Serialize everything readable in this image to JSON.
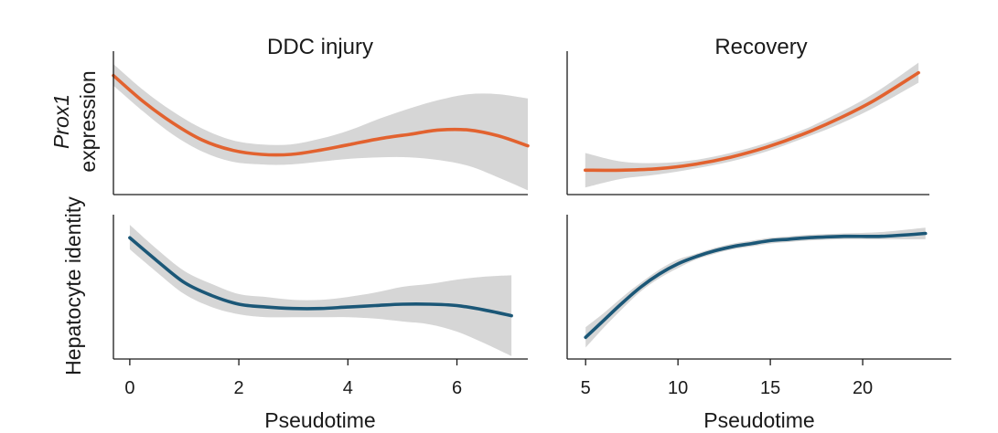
{
  "chart_data": [
    {
      "type": "line",
      "panel": "top-left",
      "title": "DDC injury",
      "ylabel_italic": "Prox1",
      "ylabel": "expression",
      "xlabel": "",
      "xlim": [
        0,
        7
      ],
      "ylim": [
        0,
        1
      ],
      "x": [
        0,
        0.5,
        1,
        1.5,
        2,
        2.5,
        3,
        3.5,
        4,
        4.5,
        5,
        5.5,
        6,
        6.5,
        7
      ],
      "series": [
        {
          "name": "Prox1 expression",
          "color": "#e2622f",
          "values": [
            0.83,
            0.65,
            0.5,
            0.38,
            0.31,
            0.28,
            0.28,
            0.31,
            0.35,
            0.39,
            0.42,
            0.45,
            0.45,
            0.41,
            0.34
          ],
          "lower": [
            0.76,
            0.58,
            0.42,
            0.3,
            0.23,
            0.21,
            0.21,
            0.23,
            0.25,
            0.26,
            0.26,
            0.24,
            0.2,
            0.12,
            0.03
          ],
          "upper": [
            0.91,
            0.73,
            0.58,
            0.46,
            0.38,
            0.35,
            0.35,
            0.39,
            0.45,
            0.53,
            0.6,
            0.66,
            0.7,
            0.7,
            0.67
          ]
        }
      ]
    },
    {
      "type": "line",
      "panel": "top-right",
      "title": "Recovery",
      "xlabel": "",
      "xlim": [
        4,
        24
      ],
      "ylim": [
        0,
        1
      ],
      "x": [
        5,
        7,
        9,
        11,
        13,
        15,
        17,
        19,
        21,
        23.4
      ],
      "series": [
        {
          "name": "Prox1 expression",
          "color": "#e2622f",
          "values": [
            0.17,
            0.17,
            0.18,
            0.21,
            0.26,
            0.33,
            0.42,
            0.53,
            0.66,
            0.85
          ],
          "lower": [
            0.05,
            0.11,
            0.14,
            0.18,
            0.23,
            0.3,
            0.39,
            0.49,
            0.61,
            0.78
          ],
          "upper": [
            0.29,
            0.23,
            0.22,
            0.24,
            0.29,
            0.36,
            0.45,
            0.57,
            0.71,
            0.92
          ]
        }
      ]
    },
    {
      "type": "line",
      "panel": "bottom-left",
      "title": "",
      "ylabel": "Hepatocyte identity",
      "xlabel": "Pseudotime",
      "xlim": [
        -0.3,
        7.3
      ],
      "ylim": [
        0,
        1
      ],
      "xticks": [
        0,
        2,
        4,
        6
      ],
      "x": [
        0,
        0.5,
        1,
        1.5,
        2,
        2.5,
        3,
        3.5,
        4,
        4.5,
        5,
        5.5,
        6,
        6.5,
        7
      ],
      "series": [
        {
          "name": "Hepatocyte identity",
          "color": "#1b5777",
          "values": [
            0.84,
            0.68,
            0.53,
            0.44,
            0.38,
            0.36,
            0.35,
            0.35,
            0.36,
            0.37,
            0.38,
            0.38,
            0.37,
            0.34,
            0.3
          ],
          "lower": [
            0.76,
            0.6,
            0.45,
            0.36,
            0.31,
            0.29,
            0.29,
            0.29,
            0.29,
            0.28,
            0.26,
            0.24,
            0.19,
            0.11,
            0.02
          ],
          "upper": [
            0.93,
            0.76,
            0.61,
            0.52,
            0.45,
            0.43,
            0.41,
            0.41,
            0.43,
            0.46,
            0.5,
            0.52,
            0.55,
            0.57,
            0.58
          ]
        }
      ]
    },
    {
      "type": "line",
      "panel": "bottom-right",
      "title": "",
      "xlabel": "Pseudotime",
      "xlim": [
        4,
        24.8
      ],
      "ylim": [
        0,
        1
      ],
      "xticks": [
        5,
        10,
        15,
        20
      ],
      "x": [
        5,
        6,
        7,
        8,
        9,
        10,
        11,
        12,
        13,
        14,
        15,
        16,
        17,
        19,
        21,
        23.4
      ],
      "series": [
        {
          "name": "Hepatocyte identity",
          "color": "#1b5777",
          "values": [
            0.15,
            0.27,
            0.39,
            0.5,
            0.59,
            0.66,
            0.71,
            0.75,
            0.78,
            0.8,
            0.82,
            0.83,
            0.84,
            0.85,
            0.85,
            0.87
          ],
          "lower": [
            0.08,
            0.22,
            0.35,
            0.47,
            0.56,
            0.63,
            0.69,
            0.73,
            0.76,
            0.78,
            0.8,
            0.81,
            0.82,
            0.83,
            0.83,
            0.83
          ],
          "upper": [
            0.22,
            0.32,
            0.43,
            0.53,
            0.62,
            0.69,
            0.73,
            0.77,
            0.8,
            0.82,
            0.84,
            0.85,
            0.86,
            0.87,
            0.88,
            0.91
          ]
        }
      ]
    }
  ]
}
